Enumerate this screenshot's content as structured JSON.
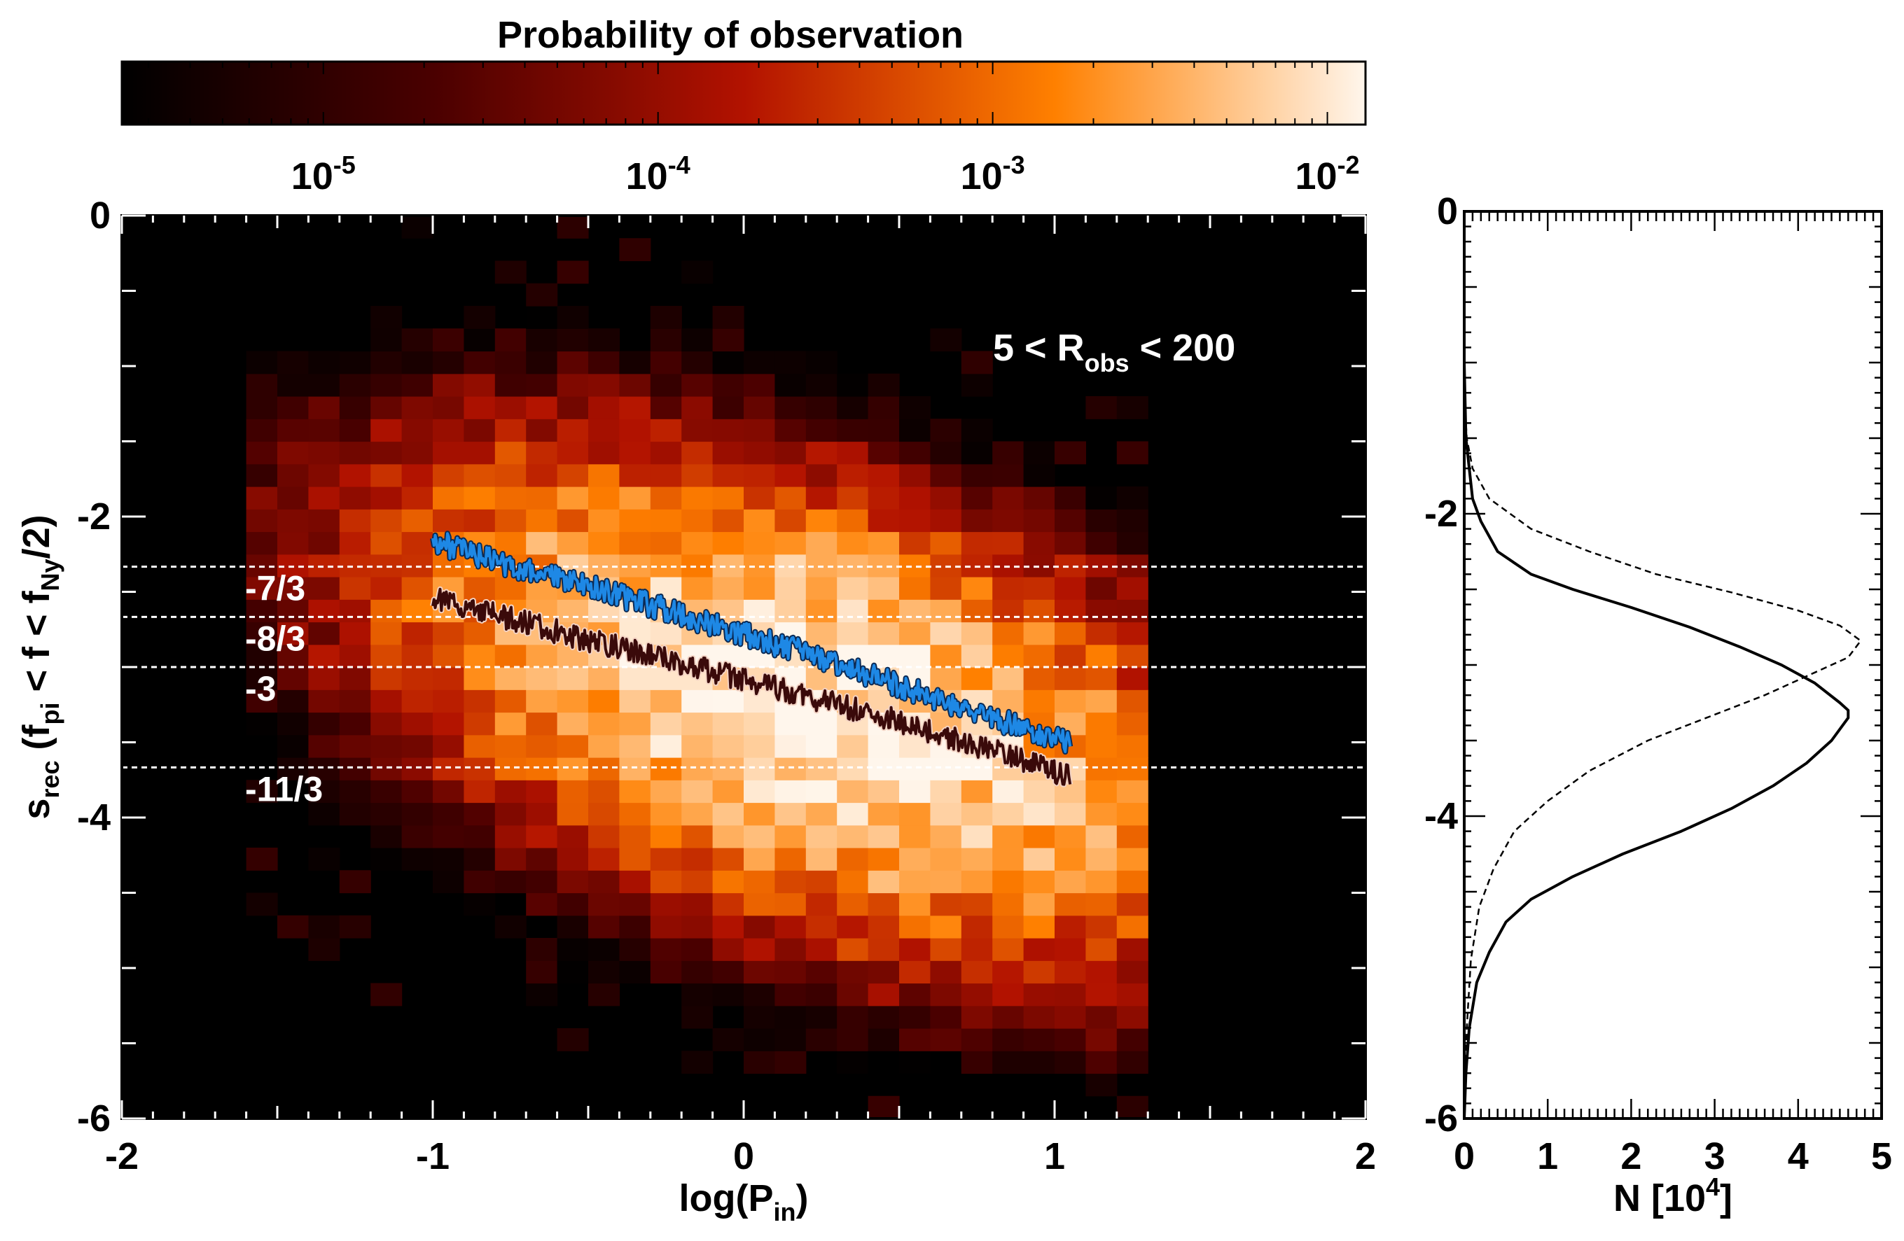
{
  "colorbar": {
    "title": "Probability of observation",
    "scale": "log",
    "range": [
      2.5e-06,
      0.013
    ],
    "colormap": [
      "#000000",
      "#4a0000",
      "#b21200",
      "#ff8000",
      "#fff6ec"
    ],
    "ticks": [
      {
        "base": "10",
        "exp": "-5",
        "value": 1e-05
      },
      {
        "base": "10",
        "exp": "-4",
        "value": 0.0001
      },
      {
        "base": "10",
        "exp": "-3",
        "value": 0.001
      },
      {
        "base": "10",
        "exp": "-2",
        "value": 0.01
      }
    ]
  },
  "main": {
    "annotation": {
      "prefix": "5 < R",
      "sub": "obs",
      "suffix": " < 200"
    },
    "xlabel": {
      "pre": "log(P",
      "sub": "in",
      "post": ")"
    },
    "ylabel": {
      "s": "s",
      "s_sub": "rec",
      "p1": "(f",
      "sub1": "pi",
      "p2": " < f < f",
      "sub2": "Ny",
      "p3": "/2)"
    },
    "xticks": [
      "-2",
      "-1",
      "0",
      "1",
      "2"
    ],
    "yticks": [
      "0",
      "-2",
      "-4",
      "-6"
    ],
    "reference_lines": [
      {
        "label": "-7/3",
        "value": -2.3333
      },
      {
        "label": "-8/3",
        "value": -2.6667
      },
      {
        "label": "-3",
        "value": -3
      },
      {
        "label": "-11/3",
        "value": -3.6667
      }
    ]
  },
  "side": {
    "xlabel": {
      "pre": "N [10",
      "sup": "4",
      "post": "]"
    },
    "xticks": [
      "0",
      "1",
      "2",
      "3",
      "4",
      "5"
    ],
    "yticks": [
      "0",
      "-2",
      "-4",
      "-6"
    ]
  },
  "chart_data": [
    {
      "type": "heatmap",
      "title": "",
      "xlabel": "log(Pin)",
      "ylabel": "srec (fpi < f < fNy/2)",
      "xlim": [
        -2,
        2
      ],
      "ylim": [
        -6,
        0
      ],
      "color_scale": "log",
      "color_range": [
        2.5e-06,
        0.013
      ],
      "cell_size": {
        "x": 0.1,
        "y": 0.15
      },
      "distribution_model": {
        "description": "tilted 2D probability distribution; peak near log(Pin)=0.2, srec=-3.2",
        "peak_value": 0.011,
        "center_x": 0.2,
        "center_y": -3.25,
        "slope_of_ridge": -0.6,
        "sigma_along_x": 0.52,
        "sigma_y": 0.55,
        "x_extent": [
          -1.55,
          1.3
        ],
        "y_extent": [
          -6,
          -0.1
        ]
      },
      "series": [
        {
          "name": "",
          "color": "#1e88e5",
          "x": [
            -1.0,
            -0.75,
            -0.5,
            -0.25,
            0.0,
            0.25,
            0.5,
            0.75,
            1.0,
            1.05
          ],
          "y": [
            -2.16,
            -2.33,
            -2.46,
            -2.62,
            -2.78,
            -2.94,
            -3.12,
            -3.3,
            -3.48,
            -3.5
          ]
        },
        {
          "name": "",
          "color": "#3a0a0a",
          "x": [
            -1.0,
            -0.75,
            -0.5,
            -0.25,
            0.0,
            0.25,
            0.5,
            0.75,
            1.0,
            1.05
          ],
          "y": [
            -2.54,
            -2.68,
            -2.82,
            -2.95,
            -3.08,
            -3.22,
            -3.36,
            -3.52,
            -3.7,
            -3.73
          ]
        }
      ]
    },
    {
      "type": "line",
      "title": "",
      "xlabel": "N [10^4]",
      "ylabel": "",
      "xlim": [
        0,
        5
      ],
      "ylim": [
        -6,
        0
      ],
      "series": [
        {
          "name": "",
          "style": "solid",
          "x": [
            0,
            0.02,
            0.1,
            0.2,
            0.4,
            0.8,
            1.3,
            2.0,
            2.7,
            3.3,
            3.8,
            4.2,
            4.5,
            4.6,
            4.6,
            4.4,
            4.1,
            3.7,
            3.2,
            2.6,
            1.9,
            1.3,
            0.8,
            0.5,
            0.3,
            0.15,
            0.06,
            0.02,
            0
          ],
          "y": [
            -1.0,
            -1.5,
            -1.9,
            -2.05,
            -2.25,
            -2.4,
            -2.5,
            -2.62,
            -2.75,
            -2.88,
            -3.0,
            -3.12,
            -3.25,
            -3.3,
            -3.35,
            -3.5,
            -3.65,
            -3.8,
            -3.95,
            -4.1,
            -4.25,
            -4.4,
            -4.55,
            -4.7,
            -4.9,
            -5.1,
            -5.4,
            -5.7,
            -6.0
          ]
        },
        {
          "name": "",
          "style": "dashed",
          "x": [
            0,
            0.03,
            0.1,
            0.3,
            0.8,
            1.5,
            2.3,
            3.2,
            4.0,
            4.5,
            4.75,
            4.6,
            4.2,
            3.6,
            2.9,
            2.2,
            1.5,
            1.0,
            0.6,
            0.35,
            0.18,
            0.08,
            0.03,
            0
          ],
          "y": [
            -1.2,
            -1.5,
            -1.7,
            -1.9,
            -2.1,
            -2.25,
            -2.4,
            -2.52,
            -2.64,
            -2.74,
            -2.84,
            -2.95,
            -3.05,
            -3.2,
            -3.35,
            -3.5,
            -3.7,
            -3.9,
            -4.1,
            -4.35,
            -4.6,
            -4.95,
            -5.4,
            -6.0
          ]
        }
      ]
    }
  ]
}
